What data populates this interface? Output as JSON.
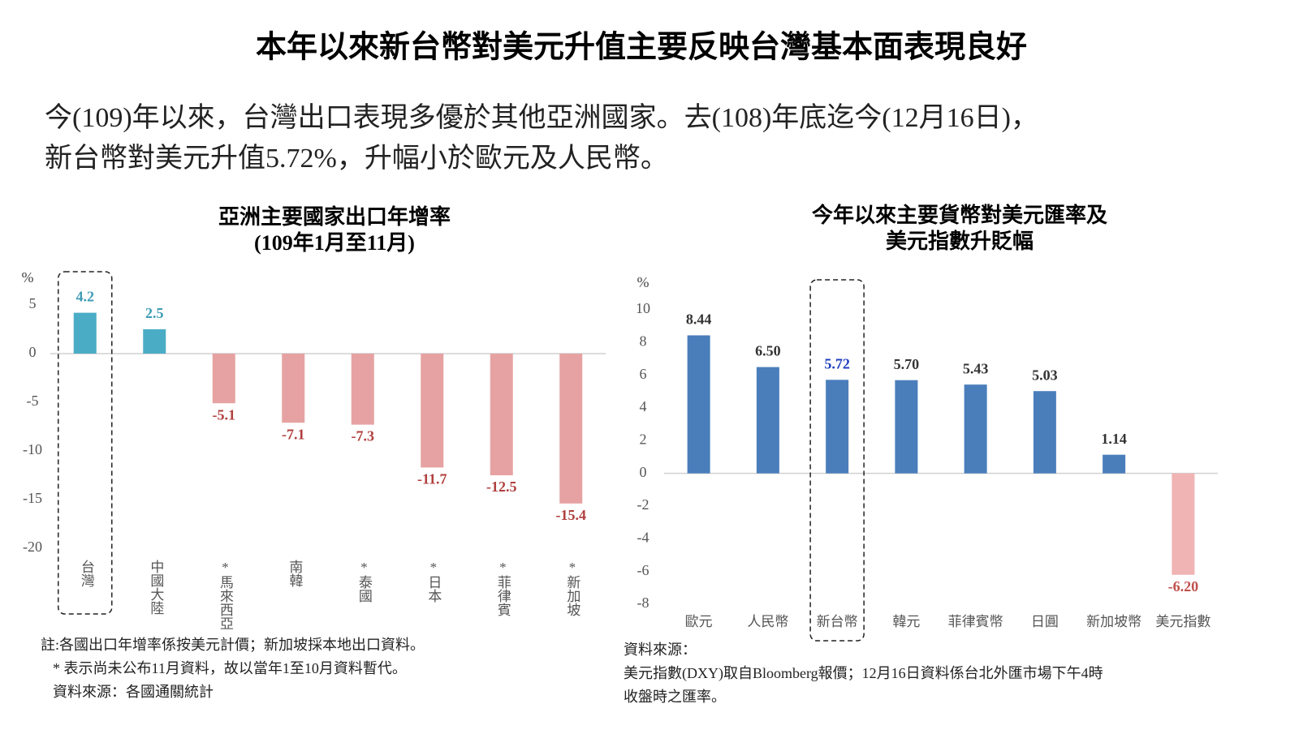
{
  "title": "本年以來新台幣對美元升值主要反映台灣基本面表現良好",
  "body": [
    "今(109)年以來，台灣出口表現多優於其他亞洲國家。去(108)年底迄今(12月16日)，",
    "新台幣對美元升值5.72%，升幅小於歐元及人民幣。"
  ],
  "chart_data": [
    {
      "type": "bar",
      "title": [
        "亞洲主要國家出口年增率",
        "(109年1月至11月)"
      ],
      "y_unit": "%",
      "categories": [
        "台灣",
        "中國大陸",
        "*馬來西亞",
        "南韓",
        "*泰國",
        "*日本",
        "*菲律賓",
        "*新加坡"
      ],
      "values": [
        4.2,
        2.5,
        -5.1,
        -7.1,
        -7.3,
        -11.7,
        -12.5,
        -15.4
      ],
      "ylim": [
        -20,
        5
      ],
      "yticks": [
        5,
        0,
        -5,
        -10,
        -15,
        -20
      ],
      "positive_color": "#4bacc6",
      "negative_color": "#e6a2a2",
      "positive_label_color": "#3d9bb5",
      "negative_label_color": "#b0403e",
      "highlight": 0,
      "notes": [
        "註:各國出口年增率係按美元計價；新加坡採本地出口資料。",
        "* 表示尚未公布11月資料，故以當年1至10月資料暫代。",
        "資料來源：各國通關統計"
      ]
    },
    {
      "type": "bar",
      "title": [
        "今年以來主要貨幣對美元匯率及",
        "美元指數升貶幅"
      ],
      "y_unit": "%",
      "categories": [
        "歐元",
        "人民幣",
        "新台幣",
        "韓元",
        "菲律賓幣",
        "日圓",
        "新加坡幣",
        "美元指數"
      ],
      "values": [
        8.44,
        6.5,
        5.72,
        5.7,
        5.43,
        5.03,
        1.14,
        -6.2
      ],
      "value_labels": [
        "8.44",
        "6.50",
        "5.72",
        "5.70",
        "5.43",
        "5.03",
        "1.14",
        "-6.20"
      ],
      "ylim": [
        -8,
        10
      ],
      "yticks": [
        10,
        8,
        6,
        4,
        2,
        0,
        -2,
        -4,
        -6,
        -8
      ],
      "positive_color": "#4a7ebb",
      "negative_color": "#f0b4b4",
      "positive_label_color": "#333333",
      "negative_label_color": "#c0504d",
      "highlight": 2,
      "highlight_label_color": "#1f3fbf",
      "notes": [
        "資料來源：",
        "美元指數(DXY)取自Bloomberg報價；12月16日資料係台北外匯市場下午4時",
        "收盤時之匯率。"
      ]
    }
  ]
}
